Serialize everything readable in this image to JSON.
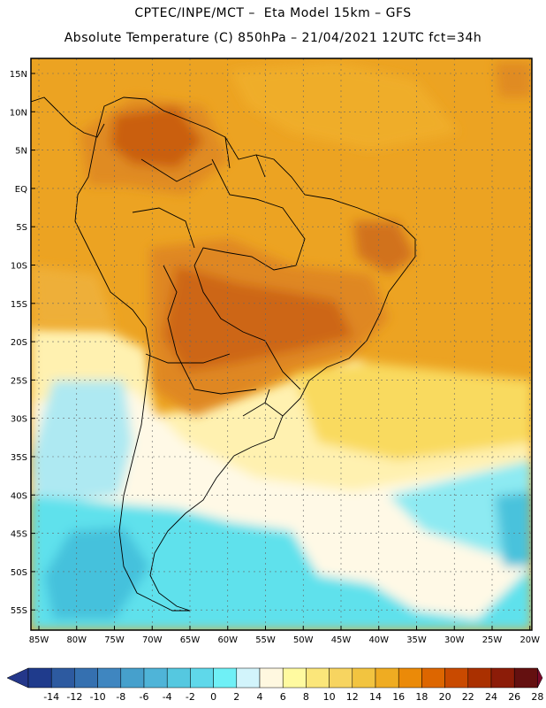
{
  "header": {
    "title_line1": "CPTEC/INPE/MCT –  Eta Model 15km – GFS",
    "title_line2": "Absolute Temperature (C) 850hPa – 21/04/2021 12UTC fct=34h"
  },
  "map": {
    "lat_labels": [
      "15N",
      "10N",
      "5N",
      "EQ",
      "5S",
      "10S",
      "15S",
      "20S",
      "25S",
      "30S",
      "35S",
      "40S",
      "45S",
      "50S",
      "55S"
    ],
    "lon_labels": [
      "85W",
      "80W",
      "75W",
      "70W",
      "65W",
      "60W",
      "55W",
      "50W",
      "45W",
      "40W",
      "35W",
      "30W",
      "25W",
      "20W"
    ],
    "lat_values": [
      15,
      10,
      5,
      0,
      -5,
      -10,
      -15,
      -20,
      -25,
      -30,
      -35,
      -40,
      -45,
      -50,
      -55
    ],
    "lon_values": [
      -85,
      -80,
      -75,
      -70,
      -65,
      -60,
      -55,
      -50,
      -45,
      -40,
      -35,
      -30,
      -25,
      -20
    ]
  },
  "colorbar": {
    "labels": [
      "-14",
      "-12",
      "-10",
      "-8",
      "-6",
      "-4",
      "-2",
      "0",
      "2",
      "4",
      "6",
      "8",
      "10",
      "12",
      "14",
      "16",
      "18",
      "20",
      "22",
      "24",
      "26",
      "28"
    ],
    "colors": [
      "#1f3b8c",
      "#2d5aa0",
      "#3570b0",
      "#3f86c0",
      "#46a0cc",
      "#4fb4d8",
      "#55c8e0",
      "#5fd8ea",
      "#6ff0f6",
      "#d2f4fb",
      "#fff8e0",
      "#fffaa0",
      "#fbe67a",
      "#f7d460",
      "#f2c440",
      "#efac22",
      "#eb8a08",
      "#dd6600",
      "#c94a00",
      "#aa3000",
      "#8c1c08",
      "#641010"
    ],
    "under_color": "#24378a",
    "over_color": "#7a0a2a"
  },
  "field_colors": {
    "deep_orange": "#c95c10",
    "orange": "#e08a22",
    "amber": "#eda324",
    "gold": "#f1bc3c",
    "yellow": "#fbe06a",
    "pale_yellow": "#fff2a8",
    "cream": "#fff9e6",
    "pale_cyan": "#c9f3f6",
    "cyan": "#5ee1ec",
    "blue_cyan": "#48c2dc"
  }
}
